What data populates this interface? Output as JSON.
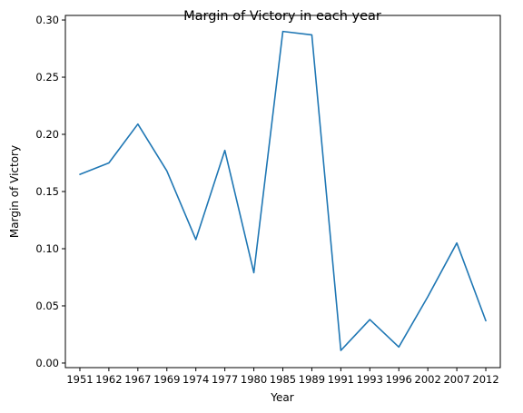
{
  "chart_data": {
    "type": "line",
    "title": "Margin of Victory in each year",
    "xlabel": "Year",
    "ylabel": "Margin of Victory",
    "categories": [
      "1951",
      "1962",
      "1967",
      "1969",
      "1974",
      "1977",
      "1980",
      "1985",
      "1989",
      "1991",
      "1993",
      "1996",
      "2002",
      "2007",
      "2012"
    ],
    "series": [
      {
        "name": "",
        "color": "#1f77b4",
        "values": [
          0.165,
          0.175,
          0.209,
          0.168,
          0.108,
          0.186,
          0.079,
          0.29,
          0.287,
          0.011,
          0.038,
          0.014,
          0.058,
          0.105,
          0.037
        ]
      }
    ],
    "yticks": [
      "0.00",
      "0.05",
      "0.10",
      "0.15",
      "0.20",
      "0.25",
      "0.30"
    ],
    "ylim": [
      -0.004,
      0.304
    ],
    "grid": false,
    "legend": "none"
  }
}
